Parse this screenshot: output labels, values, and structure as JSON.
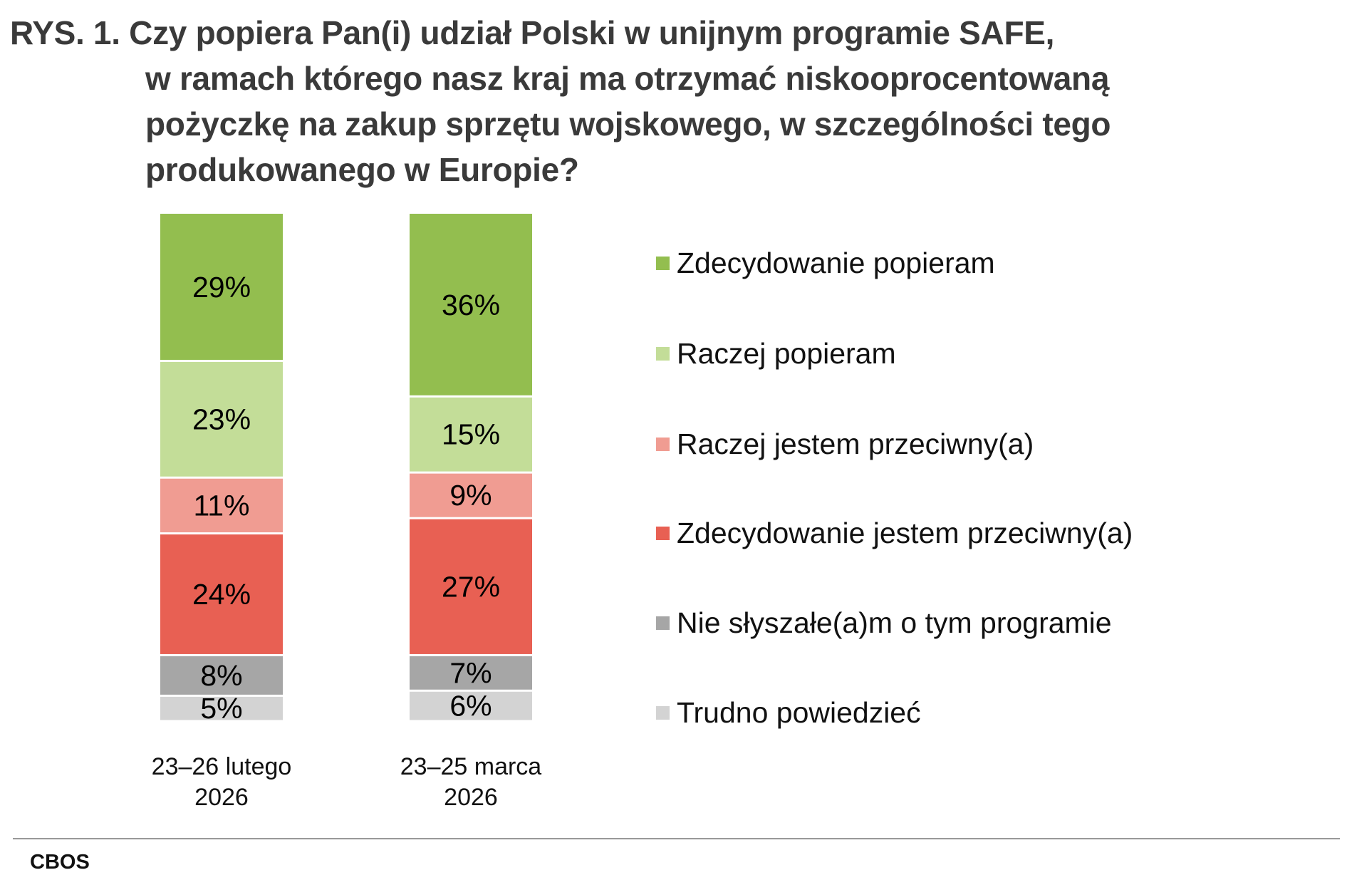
{
  "chart_data": {
    "type": "bar",
    "stacked": true,
    "orientation": "vertical",
    "title_lines": [
      "RYS. 1. Czy popiera Pan(i) udział Polski w unijnym programie SAFE,",
      "w ramach którego nasz kraj ma otrzymać niskooprocentowaną",
      "pożyczkę na zakup sprzętu wojskowego, w szczególności tego",
      "produkowanego w Europie?"
    ],
    "categories": [
      [
        "23–26 lutego",
        "2026"
      ],
      [
        "23–25 marca",
        "2026"
      ]
    ],
    "series": [
      {
        "name": "Zdecydowanie popieram",
        "color": "#93BE4F",
        "values": [
          29,
          36
        ]
      },
      {
        "name": "Raczej popieram",
        "color": "#C3DD98",
        "values": [
          23,
          15
        ]
      },
      {
        "name": "Raczej jestem przeciwny(a)",
        "color": "#F09C92",
        "values": [
          11,
          9
        ]
      },
      {
        "name": "Zdecydowanie jestem przeciwny(a)",
        "color": "#E86053",
        "values": [
          24,
          27
        ]
      },
      {
        "name": "Nie słyszałe(a)m o tym programie",
        "color": "#A6A6A6",
        "values": [
          8,
          7
        ]
      },
      {
        "name": "Trudno powiedzieć",
        "color": "#D3D3D3",
        "values": [
          5,
          6
        ]
      }
    ],
    "unit": "%",
    "ylim": [
      0,
      100
    ],
    "grid": false,
    "legend_position": "right"
  },
  "source": "CBOS"
}
